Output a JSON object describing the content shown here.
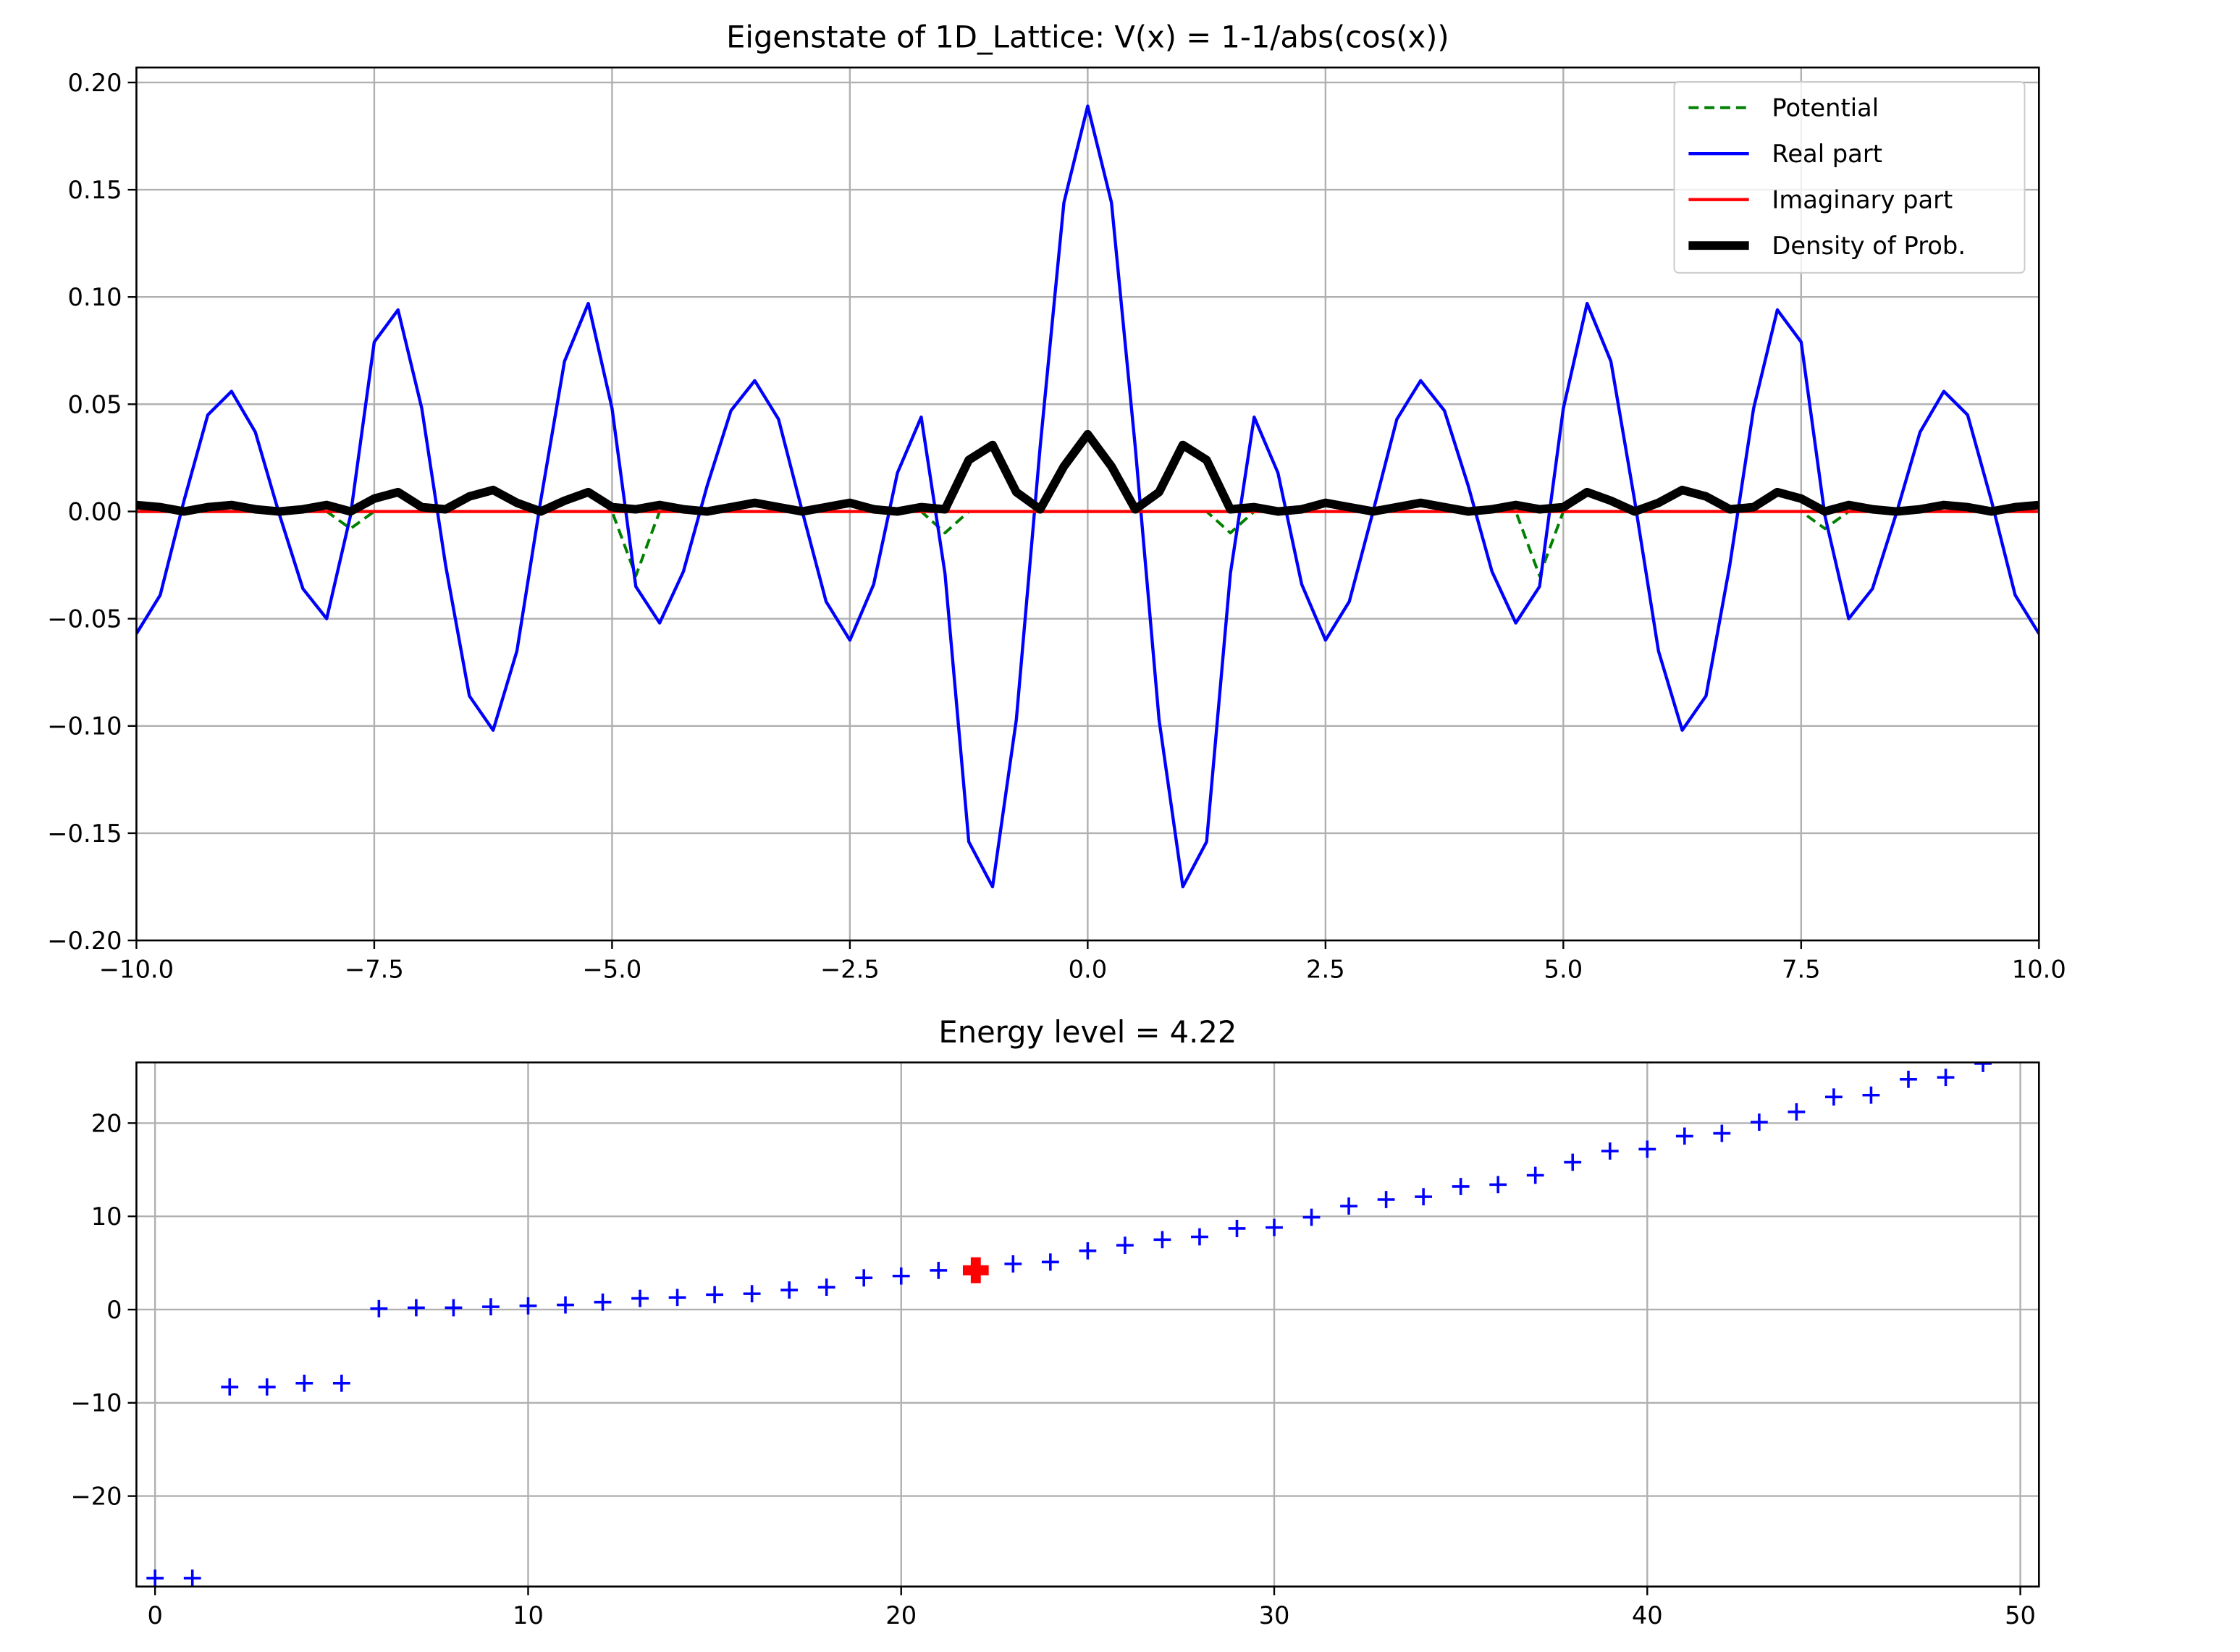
{
  "chart_data": [
    {
      "type": "line",
      "title": "Eigenstate of 1D_Lattice: V(x) = 1-1/abs(cos(x))",
      "x": [
        -10,
        -9.75,
        -9.5,
        -9.25,
        -9,
        -8.75,
        -8.5,
        -8.25,
        -8,
        -7.75,
        -7.5,
        -7.25,
        -7,
        -6.75,
        -6.5,
        -6.25,
        -6,
        -5.75,
        -5.5,
        -5.25,
        -5,
        -4.75,
        -4.5,
        -4.25,
        -4,
        -3.75,
        -3.5,
        -3.25,
        -3,
        -2.75,
        -2.5,
        -2.25,
        -2,
        -1.75,
        -1.5,
        -1.25,
        -1,
        -0.75,
        -0.5,
        -0.25,
        0,
        0.25,
        0.5,
        0.75,
        1,
        1.25,
        1.5,
        1.75,
        2,
        2.25,
        2.5,
        2.75,
        3,
        3.25,
        3.5,
        3.75,
        4,
        4.25,
        4.5,
        4.75,
        5,
        5.25,
        5.5,
        5.75,
        6,
        6.25,
        6.5,
        6.75,
        7,
        7.25,
        7.5,
        7.75,
        8,
        8.25,
        8.5,
        8.75,
        9,
        9.25,
        9.5,
        9.75,
        10
      ],
      "series": [
        {
          "name": "Potential",
          "color": "#008000",
          "linestyle": "dashed",
          "values": [
            0,
            0,
            0,
            0,
            0,
            0,
            0,
            0,
            0,
            -0.008,
            0,
            0,
            0,
            0,
            0,
            0,
            0,
            0,
            0,
            0,
            0,
            -0.03,
            0,
            0,
            0,
            0,
            0,
            0,
            0,
            0,
            0,
            0,
            0,
            0,
            -0.01,
            0,
            0,
            0,
            0,
            0,
            0,
            0,
            0,
            0,
            0,
            0,
            -0.01,
            0,
            0,
            0,
            0,
            0,
            0,
            0,
            0,
            0,
            0,
            0,
            0,
            -0.03,
            0,
            0,
            0,
            0,
            0,
            0,
            0,
            0,
            0,
            0,
            0,
            -0.008,
            0,
            0,
            0,
            0,
            0,
            0,
            0,
            0,
            0
          ]
        },
        {
          "name": "Real part",
          "color": "#0000ff",
          "linestyle": "solid",
          "values": [
            -0.057,
            -0.039,
            0.005,
            0.045,
            0.056,
            0.037,
            -0.001,
            -0.036,
            -0.05,
            -0.002,
            0.079,
            0.094,
            0.048,
            -0.025,
            -0.086,
            -0.102,
            -0.065,
            0.005,
            0.07,
            0.097,
            0.048,
            -0.035,
            -0.052,
            -0.028,
            0.012,
            0.047,
            0.061,
            0.043,
            0,
            -0.042,
            -0.06,
            -0.034,
            0.018,
            0.044,
            -0.029,
            -0.154,
            -0.175,
            -0.097,
            0.03,
            0.144,
            0.189,
            0.144,
            0.03,
            -0.097,
            -0.175,
            -0.154,
            -0.029,
            0.044,
            0.018,
            -0.034,
            -0.06,
            -0.042,
            0,
            0.043,
            0.061,
            0.047,
            0.012,
            -0.028,
            -0.052,
            -0.035,
            0.048,
            0.097,
            0.07,
            0.005,
            -0.065,
            -0.102,
            -0.086,
            -0.025,
            0.048,
            0.094,
            0.079,
            -0.002,
            -0.05,
            -0.036,
            -0.001,
            0.037,
            0.056,
            0.045,
            0.005,
            -0.039,
            -0.057
          ]
        },
        {
          "name": "Imaginary part",
          "color": "#ff0000",
          "linestyle": "solid",
          "values": [
            0,
            0,
            0,
            0,
            0,
            0,
            0,
            0,
            0,
            0,
            0,
            0,
            0,
            0,
            0,
            0,
            0,
            0,
            0,
            0,
            0,
            0,
            0,
            0,
            0,
            0,
            0,
            0,
            0,
            0,
            0,
            0,
            0,
            0,
            0,
            0,
            0,
            0,
            0,
            0,
            0,
            0,
            0,
            0,
            0,
            0,
            0,
            0,
            0,
            0,
            0,
            0,
            0,
            0,
            0,
            0,
            0,
            0,
            0,
            0,
            0,
            0,
            0,
            0,
            0,
            0,
            0,
            0,
            0,
            0,
            0,
            0,
            0,
            0,
            0,
            0,
            0,
            0,
            0,
            0,
            0
          ]
        },
        {
          "name": "Density of Prob.",
          "color": "#000000",
          "linestyle": "solid",
          "values": [
            0.003,
            0.002,
            0,
            0.002,
            0.003,
            0.001,
            0,
            0.001,
            0.003,
            0,
            0.006,
            0.009,
            0.002,
            0.001,
            0.007,
            0.01,
            0.004,
            0,
            0.005,
            0.009,
            0.002,
            0.001,
            0.003,
            0.001,
            0,
            0.002,
            0.004,
            0.002,
            0,
            0.002,
            0.004,
            0.001,
            0,
            0.002,
            0.001,
            0.024,
            0.031,
            0.009,
            0.001,
            0.021,
            0.036,
            0.021,
            0.001,
            0.009,
            0.031,
            0.024,
            0.001,
            0.002,
            0,
            0.001,
            0.004,
            0.002,
            0,
            0.002,
            0.004,
            0.002,
            0,
            0.001,
            0.003,
            0.001,
            0.002,
            0.009,
            0.005,
            0,
            0.004,
            0.01,
            0.007,
            0.001,
            0.002,
            0.009,
            0.006,
            0,
            0.003,
            0.001,
            0,
            0.001,
            0.003,
            0.002,
            0,
            0.002,
            0.003
          ]
        }
      ],
      "xlim": [
        -10,
        10
      ],
      "xticks": [
        {
          "value": -10,
          "label": "−10.0"
        },
        {
          "value": -7.5,
          "label": "−7.5"
        },
        {
          "value": -5,
          "label": "−5.0"
        },
        {
          "value": -2.5,
          "label": "−2.5"
        },
        {
          "value": 0,
          "label": "0.0"
        },
        {
          "value": 2.5,
          "label": "2.5"
        },
        {
          "value": 5,
          "label": "5.0"
        },
        {
          "value": 7.5,
          "label": "7.5"
        },
        {
          "value": 10,
          "label": "10.0"
        }
      ],
      "ylim": [
        -0.2,
        0.207
      ],
      "yticks": [
        {
          "value": -0.2,
          "label": "−0.20"
        },
        {
          "value": -0.15,
          "label": "−0.15"
        },
        {
          "value": -0.1,
          "label": "−0.10"
        },
        {
          "value": -0.05,
          "label": "−0.05"
        },
        {
          "value": 0,
          "label": "0.00"
        },
        {
          "value": 0.05,
          "label": "0.05"
        },
        {
          "value": 0.1,
          "label": "0.10"
        },
        {
          "value": 0.15,
          "label": "0.15"
        },
        {
          "value": 0.2,
          "label": "0.20"
        }
      ],
      "grid": true,
      "legend": "upper right"
    },
    {
      "type": "scatter",
      "title": "Energy level = 4.22",
      "color": "#0000ff",
      "x": [
        0,
        1,
        2,
        3,
        4,
        5,
        6,
        7,
        8,
        9,
        10,
        11,
        12,
        13,
        14,
        15,
        16,
        17,
        18,
        19,
        20,
        21,
        22,
        23,
        24,
        25,
        26,
        27,
        28,
        29,
        30,
        31,
        32,
        33,
        34,
        35,
        36,
        37,
        38,
        39,
        40,
        41,
        42,
        43,
        44,
        45,
        46,
        47,
        48,
        49
      ],
      "values": [
        -28.8,
        -28.8,
        -8.3,
        -8.3,
        -7.9,
        -7.9,
        0.1,
        0.2,
        0.2,
        0.3,
        0.4,
        0.5,
        0.8,
        1.2,
        1.3,
        1.6,
        1.7,
        2.1,
        2.4,
        3.4,
        3.6,
        4.2,
        4.22,
        4.9,
        5.1,
        6.3,
        6.9,
        7.5,
        7.8,
        8.7,
        8.8,
        9.9,
        11.1,
        11.8,
        12.1,
        13.2,
        13.4,
        14.4,
        15.8,
        17,
        17.2,
        18.6,
        18.9,
        20.1,
        21.2,
        22.8,
        23,
        24.7,
        24.9,
        26.4
      ],
      "highlight": {
        "x": 22,
        "y": 4.22,
        "color": "#ff0000"
      },
      "xlim": [
        -0.5,
        50.5
      ],
      "xticks": [
        0,
        10,
        20,
        30,
        40,
        50
      ],
      "ylim": [
        -29.7,
        26.5
      ],
      "yticks": [
        {
          "value": -20,
          "label": "−20"
        },
        {
          "value": -10,
          "label": "−10"
        },
        0,
        10,
        20
      ],
      "grid": true
    }
  ]
}
